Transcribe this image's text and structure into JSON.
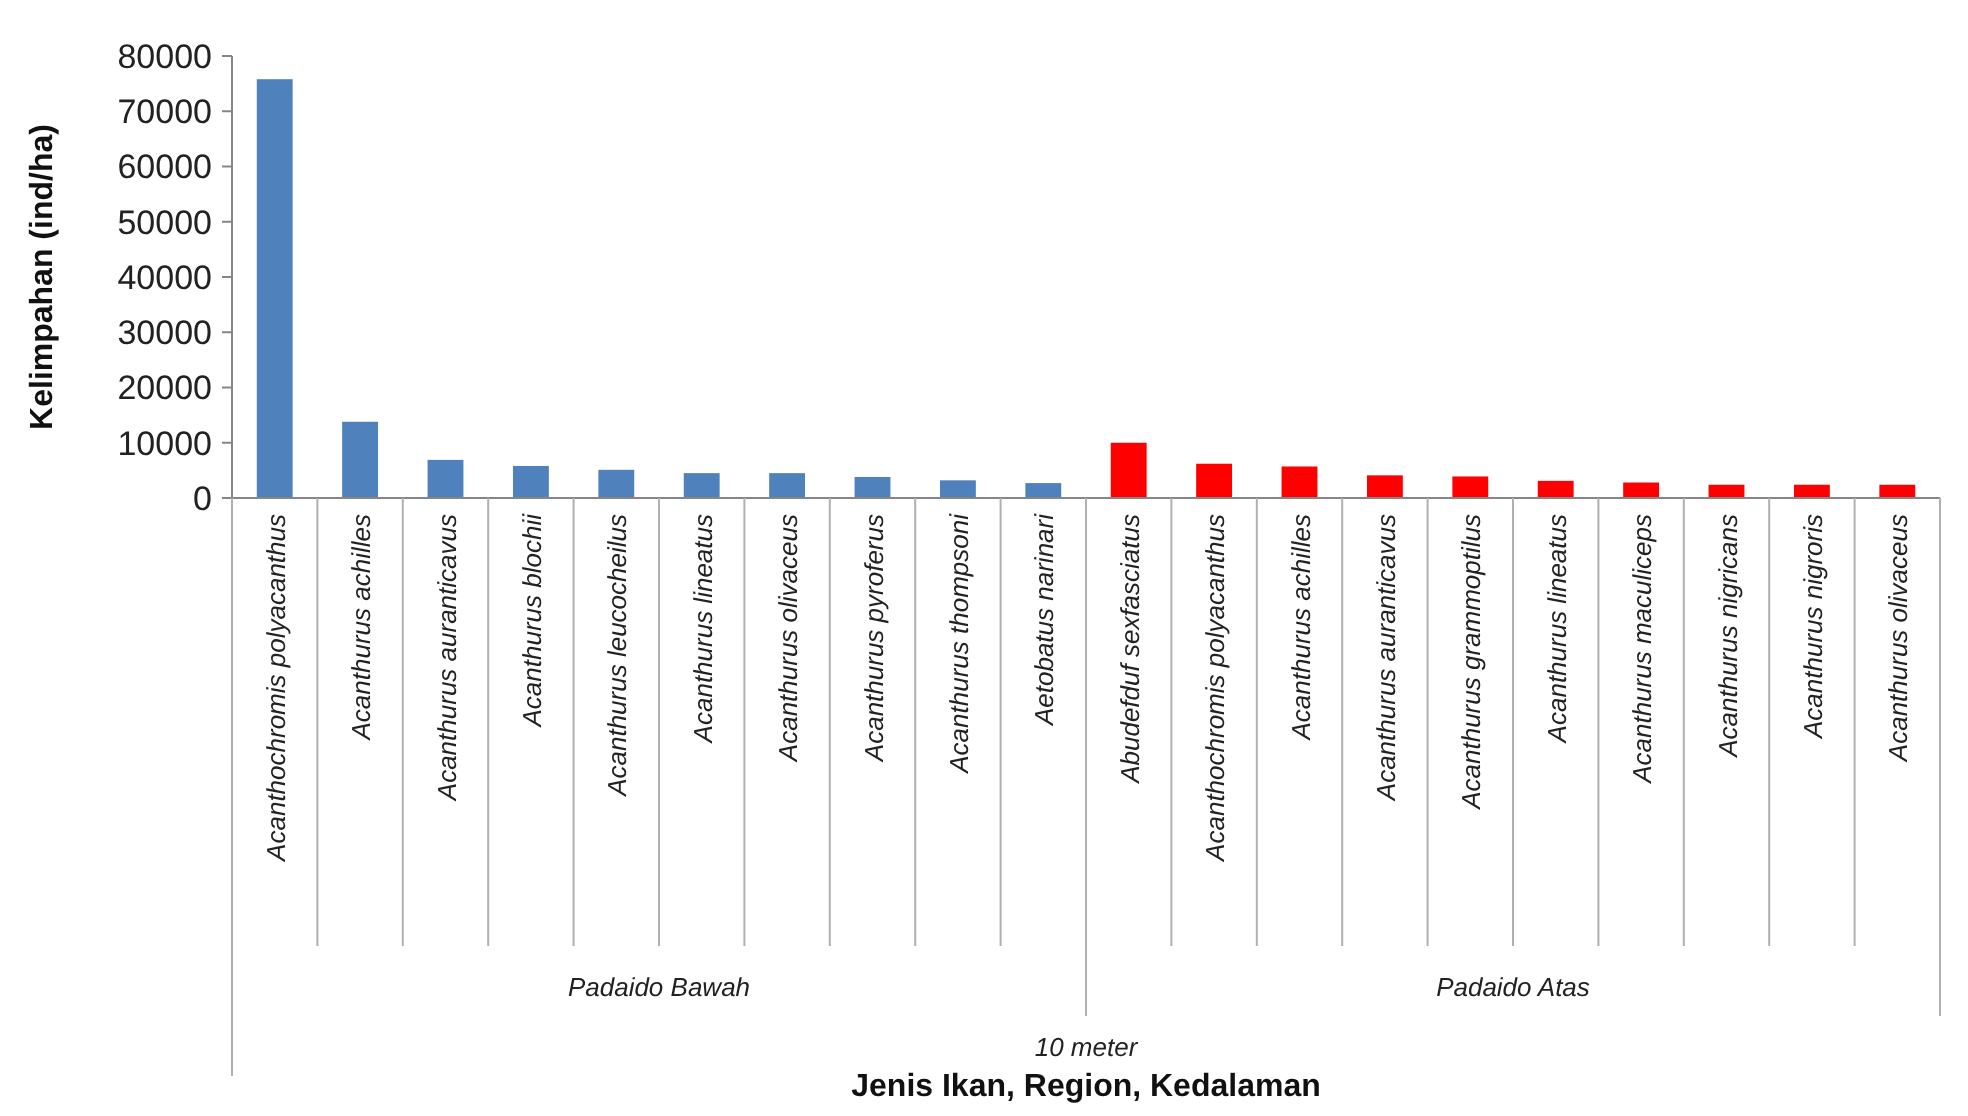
{
  "chart_data": {
    "type": "bar",
    "ylabel": "Kelimpahan (ind/ha)",
    "categories": [
      "Acanthochromis polyacanthus",
      "Acanthurus achilles",
      "Acanthurus auranticavus",
      "Acanthurus blochii",
      "Acanthurus leucocheilus",
      "Acanthurus lineatus",
      "Acanthurus olivaceus",
      "Acanthurus pyroferus",
      "Acanthurus thompsoni",
      "Aetobatus narinari",
      "Abudefduf sexfasciatus",
      "Acanthochromis polyacanthus",
      "Acanthurus achilles",
      "Acanthurus auranticavus",
      "Acanthurus grammoptilus",
      "Acanthurus lineatus",
      "Acanthurus maculiceps",
      "Acanthurus nigricans",
      "Acanthurus nigroris",
      "Acanthurus olivaceus"
    ],
    "values": [
      75800,
      13800,
      6900,
      5800,
      5100,
      4500,
      4500,
      3800,
      3200,
      2700,
      10000,
      6200,
      5700,
      4100,
      3900,
      3100,
      2800,
      2400,
      2400,
      2400
    ],
    "colors": [
      "#4f81bd",
      "#4f81bd",
      "#4f81bd",
      "#4f81bd",
      "#4f81bd",
      "#4f81bd",
      "#4f81bd",
      "#4f81bd",
      "#4f81bd",
      "#4f81bd",
      "#ff0000",
      "#ff0000",
      "#ff0000",
      "#ff0000",
      "#ff0000",
      "#ff0000",
      "#ff0000",
      "#ff0000",
      "#ff0000",
      "#ff0000"
    ],
    "ylim": [
      0,
      80000
    ],
    "yticks": [
      0,
      10000,
      20000,
      30000,
      40000,
      50000,
      60000,
      70000,
      80000
    ],
    "annotations": [
      "Padaido Bawah",
      "Padaido Atas",
      "10 meter",
      "Jenis Ikan, Region, Kedalaman"
    ],
    "grid": false
  }
}
